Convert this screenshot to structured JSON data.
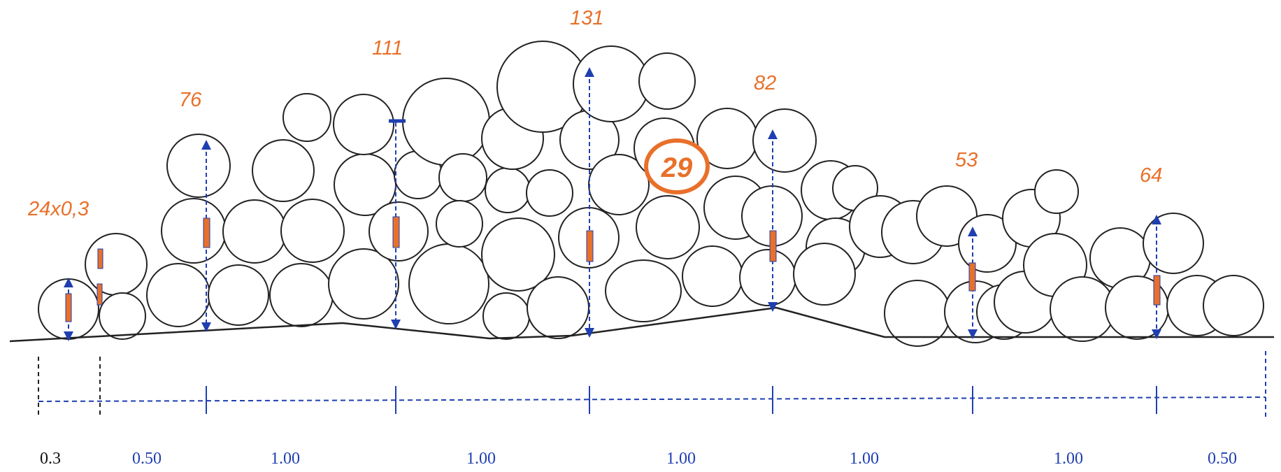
{
  "log_label": "24x0,3",
  "pile_height_labels": [
    "76",
    "111",
    "131",
    "82",
    "53",
    "64"
  ],
  "highlighted_log_label": "29",
  "spacing_labels": [
    "0.3",
    "0.50",
    "1.00",
    "1.00",
    "1.00",
    "1.00",
    "1.00",
    "0.50"
  ],
  "colors": {
    "label_orange": "#e8702a",
    "measure_blue": "#1f3fb0",
    "spacing_label_blue": "#1f3fb0",
    "first_spacing_label": "#111111",
    "outline": "#222222"
  }
}
